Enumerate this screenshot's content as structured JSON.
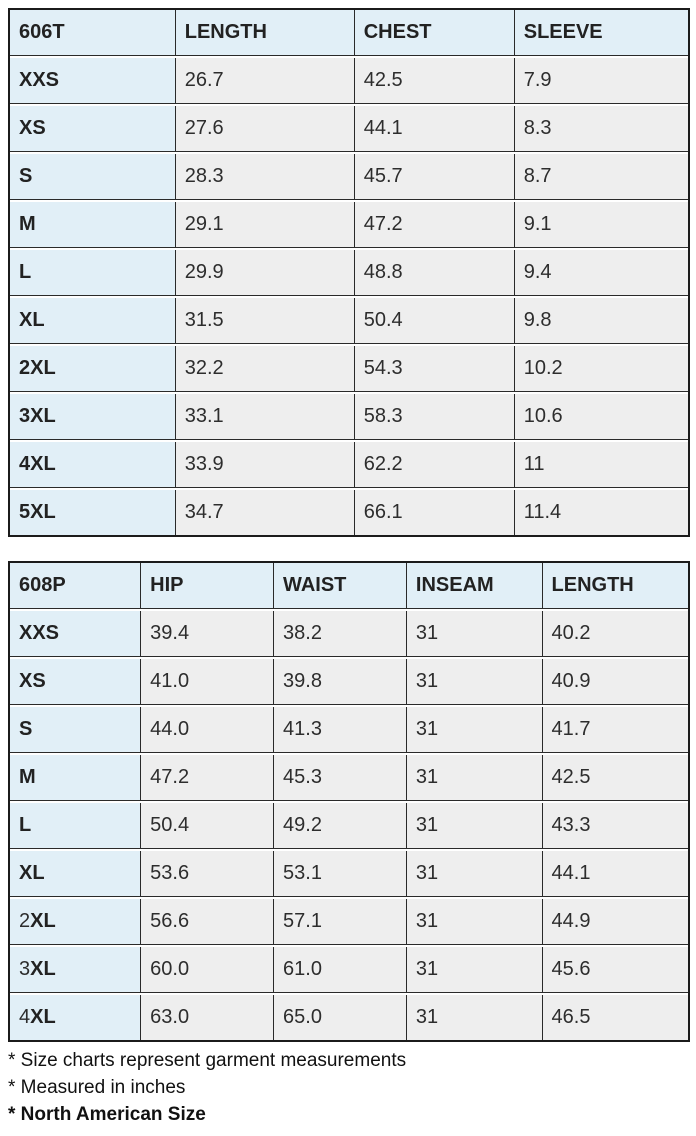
{
  "colors": {
    "header_fill": "#e1eff7",
    "data_fill": "#eeeeee",
    "border": "#1b1b1b",
    "text": "#2d2d2d"
  },
  "tables": [
    {
      "id_label": "606T",
      "columns": [
        "LENGTH",
        "CHEST",
        "SLEEVE"
      ],
      "size_digit_regular": false,
      "rows": [
        {
          "size": "XXS",
          "values": [
            "26.7",
            "42.5",
            "7.9"
          ]
        },
        {
          "size": "XS",
          "values": [
            "27.6",
            "44.1",
            "8.3"
          ]
        },
        {
          "size": "S",
          "values": [
            "28.3",
            "45.7",
            "8.7"
          ]
        },
        {
          "size": "M",
          "values": [
            "29.1",
            "47.2",
            "9.1"
          ]
        },
        {
          "size": "L",
          "values": [
            "29.9",
            "48.8",
            "9.4"
          ]
        },
        {
          "size": "XL",
          "values": [
            "31.5",
            "50.4",
            "9.8"
          ]
        },
        {
          "size": "2XL",
          "values": [
            "32.2",
            "54.3",
            "10.2"
          ]
        },
        {
          "size": "3XL",
          "values": [
            "33.1",
            "58.3",
            "10.6"
          ]
        },
        {
          "size": "4XL",
          "values": [
            "33.9",
            "62.2",
            "11"
          ]
        },
        {
          "size": "5XL",
          "values": [
            "34.7",
            "66.1",
            "11.4"
          ]
        }
      ]
    },
    {
      "id_label": "608P",
      "columns": [
        "HIP",
        "WAIST",
        "INSEAM",
        "LENGTH"
      ],
      "size_digit_regular": true,
      "rows": [
        {
          "size": "XXS",
          "values": [
            "39.4",
            "38.2",
            "31",
            "40.2"
          ]
        },
        {
          "size": "XS",
          "values": [
            "41.0",
            "39.8",
            "31",
            "40.9"
          ]
        },
        {
          "size": "S",
          "values": [
            "44.0",
            "41.3",
            "31",
            "41.7"
          ]
        },
        {
          "size": "M",
          "values": [
            "47.2",
            "45.3",
            "31",
            "42.5"
          ]
        },
        {
          "size": "L",
          "values": [
            "50.4",
            "49.2",
            "31",
            "43.3"
          ]
        },
        {
          "size": "XL",
          "values": [
            "53.6",
            "53.1",
            "31",
            "44.1"
          ]
        },
        {
          "size": "2XL",
          "values": [
            "56.6",
            "57.1",
            "31",
            "44.9"
          ]
        },
        {
          "size": "3XL",
          "values": [
            "60.0",
            "61.0",
            "31",
            "45.6"
          ]
        },
        {
          "size": "4XL",
          "values": [
            "63.0",
            "65.0",
            "31",
            "46.5"
          ]
        }
      ]
    }
  ],
  "notes": [
    "* Size charts represent garment measurements",
    "* Measured in inches",
    "* North American Size"
  ]
}
